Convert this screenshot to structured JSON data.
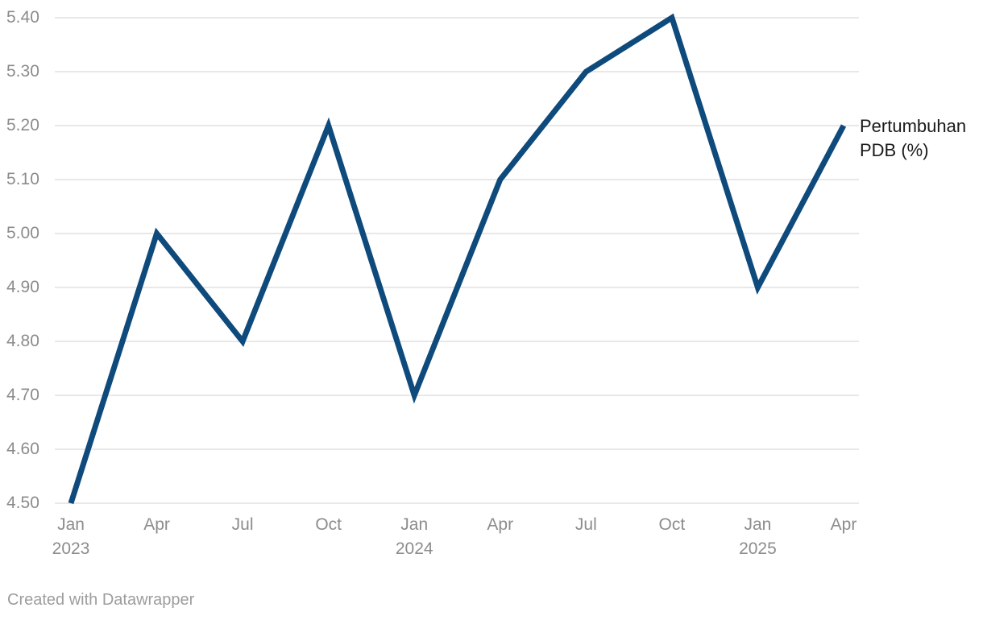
{
  "chart_data": {
    "type": "line",
    "title": "",
    "series_label": "Pertumbuhan PDB (%)",
    "x": [
      "Jan 2023",
      "Apr 2023",
      "Jul 2023",
      "Oct 2023",
      "Jan 2024",
      "Apr 2024",
      "Jul 2024",
      "Oct 2024",
      "Jan 2025",
      "Apr 2025"
    ],
    "x_ticks": [
      {
        "month": "Jan",
        "year": "2023"
      },
      {
        "month": "Apr",
        "year": ""
      },
      {
        "month": "Jul",
        "year": ""
      },
      {
        "month": "Oct",
        "year": ""
      },
      {
        "month": "Jan",
        "year": "2024"
      },
      {
        "month": "Apr",
        "year": ""
      },
      {
        "month": "Jul",
        "year": ""
      },
      {
        "month": "Oct",
        "year": ""
      },
      {
        "month": "Jan",
        "year": "2025"
      },
      {
        "month": "Apr",
        "year": ""
      }
    ],
    "values": [
      4.5,
      5.0,
      4.8,
      5.2,
      4.7,
      5.1,
      5.3,
      5.4,
      4.9,
      5.2
    ],
    "y_ticks": [
      "5.40",
      "5.30",
      "5.20",
      "5.10",
      "5.00",
      "4.90",
      "4.80",
      "4.70",
      "4.60",
      "4.50"
    ],
    "y_tick_values": [
      5.4,
      5.3,
      5.2,
      5.1,
      5.0,
      4.9,
      4.8,
      4.7,
      4.6,
      4.5
    ],
    "ylim": [
      4.5,
      5.4
    ],
    "grid": true,
    "legend_position": "right of line end",
    "colors": {
      "line": "#0e4a7b",
      "grid": "#e8e8e8",
      "tick_label": "#8c8c8c",
      "series_label": "#1a1a1a",
      "attribution": "#9d9d9d"
    }
  },
  "footer": {
    "attribution": "Created with Datawrapper"
  }
}
